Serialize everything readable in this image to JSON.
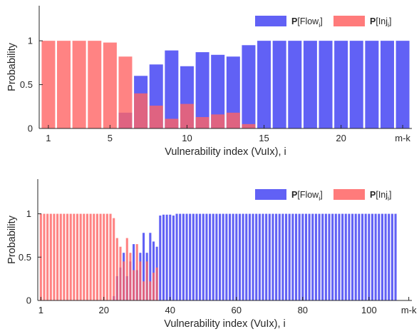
{
  "chart_data": [
    {
      "type": "bar",
      "xlabel": "Vulnerability index (VuIx), i",
      "ylabel": "Probability",
      "ylim": [
        0,
        1.4
      ],
      "yticks": [
        0,
        0.5,
        1
      ],
      "ytick_labels": [
        "0",
        "0.5",
        "1"
      ],
      "x": [
        1,
        2,
        3,
        4,
        5,
        6,
        7,
        8,
        9,
        10,
        11,
        12,
        13,
        14,
        15,
        16,
        17,
        18,
        19,
        20,
        21,
        22,
        23,
        24
      ],
      "xticks": [
        1,
        5,
        10,
        15,
        20,
        24
      ],
      "xtick_labels": [
        "1",
        "5",
        "10",
        "15",
        "20",
        "m-k"
      ],
      "legend": {
        "placement": "top-right"
      },
      "series": [
        {
          "name": "P[Flow_i]",
          "label_main": "P",
          "label_bracket": "[Flow",
          "label_sub": "i",
          "label_close": "]",
          "color": "#5858F4",
          "values": [
            0,
            0,
            0,
            0,
            0,
            0.18,
            0.6,
            0.73,
            0.89,
            0.71,
            0.87,
            0.84,
            0.82,
            0.95,
            1,
            1,
            1,
            1,
            1,
            1,
            1,
            1,
            1,
            1
          ]
        },
        {
          "name": "P[Inj_i]",
          "label_main": "P",
          "label_bracket": "[Inj",
          "label_sub": "i",
          "label_close": "]",
          "color": "#FF6464",
          "values": [
            1,
            1,
            1,
            1,
            0.98,
            0.82,
            0.4,
            0.26,
            0.11,
            0.28,
            0.13,
            0.16,
            0.18,
            0.05,
            0,
            0,
            0,
            0,
            0,
            0,
            0,
            0,
            0,
            0
          ]
        }
      ]
    },
    {
      "type": "bar",
      "xlabel": "Vulnerability index (VuIx), i",
      "ylabel": "Probability",
      "ylim": [
        0,
        1.4
      ],
      "yticks": [
        0,
        0.5,
        1
      ],
      "ytick_labels": [
        "0",
        "0.5",
        "1"
      ],
      "x_range": [
        1,
        112
      ],
      "xticks": [
        1,
        20,
        40,
        60,
        80,
        100,
        112
      ],
      "xtick_labels": [
        "1",
        "20",
        "40",
        "60",
        "80",
        "100",
        "m-k"
      ],
      "legend": {
        "placement": "top-right"
      },
      "series": [
        {
          "name": "P[Flow_i]",
          "label_main": "P",
          "label_bracket": "[Flow",
          "label_sub": "i",
          "label_close": "]",
          "color": "#5858F4",
          "values": [
            0,
            0,
            0,
            0,
            0,
            0,
            0,
            0,
            0,
            0,
            0,
            0,
            0,
            0,
            0,
            0,
            0,
            0,
            0,
            0,
            0,
            0,
            0.05,
            0.28,
            0.38,
            0.55,
            0.28,
            0.45,
            0.65,
            0.35,
            0.55,
            0.78,
            0.55,
            0.78,
            0.68,
            0.62,
            0.98,
            0.99,
            0.99,
            0.99,
            0.98,
            1,
            1,
            1,
            1,
            1,
            1,
            1,
            1,
            1,
            1,
            1,
            1,
            1,
            1,
            1,
            1,
            1,
            1,
            1,
            1,
            1,
            1,
            1,
            1,
            1,
            1,
            1,
            1,
            1,
            1,
            1,
            1,
            1,
            1,
            1,
            1,
            1,
            1,
            1,
            1,
            1,
            1,
            1,
            1,
            1,
            1,
            1,
            1,
            1,
            1,
            1,
            1,
            1,
            1,
            1,
            1,
            1,
            1,
            1,
            1,
            1,
            1,
            1,
            1,
            1,
            1,
            1
          ]
        },
        {
          "name": "P[Inj_i]",
          "label_main": "P",
          "label_bracket": "[Inj",
          "label_sub": "i",
          "label_close": "]",
          "color": "#FF6464",
          "values": [
            1,
            1,
            1,
            1,
            1,
            1,
            1,
            1,
            1,
            1,
            1,
            1,
            1,
            1,
            1,
            1,
            1,
            1,
            1,
            1,
            1,
            1,
            0.95,
            0.72,
            0.62,
            0.45,
            0.72,
            0.55,
            0.35,
            0.65,
            0.45,
            0.22,
            0.45,
            0.22,
            0.32,
            0.38,
            0,
            0,
            0,
            0,
            0,
            0,
            0,
            0,
            0,
            0,
            0,
            0,
            0,
            0,
            0,
            0,
            0,
            0,
            0,
            0,
            0,
            0,
            0,
            0,
            0,
            0,
            0,
            0,
            0,
            0,
            0,
            0,
            0,
            0,
            0,
            0,
            0,
            0,
            0,
            0,
            0,
            0,
            0,
            0,
            0,
            0,
            0,
            0,
            0,
            0,
            0,
            0,
            0,
            0,
            0,
            0,
            0,
            0,
            0,
            0,
            0,
            0,
            0,
            0,
            0,
            0,
            0,
            0,
            0,
            0,
            0,
            0,
            0,
            0,
            0,
            0
          ]
        }
      ]
    }
  ]
}
